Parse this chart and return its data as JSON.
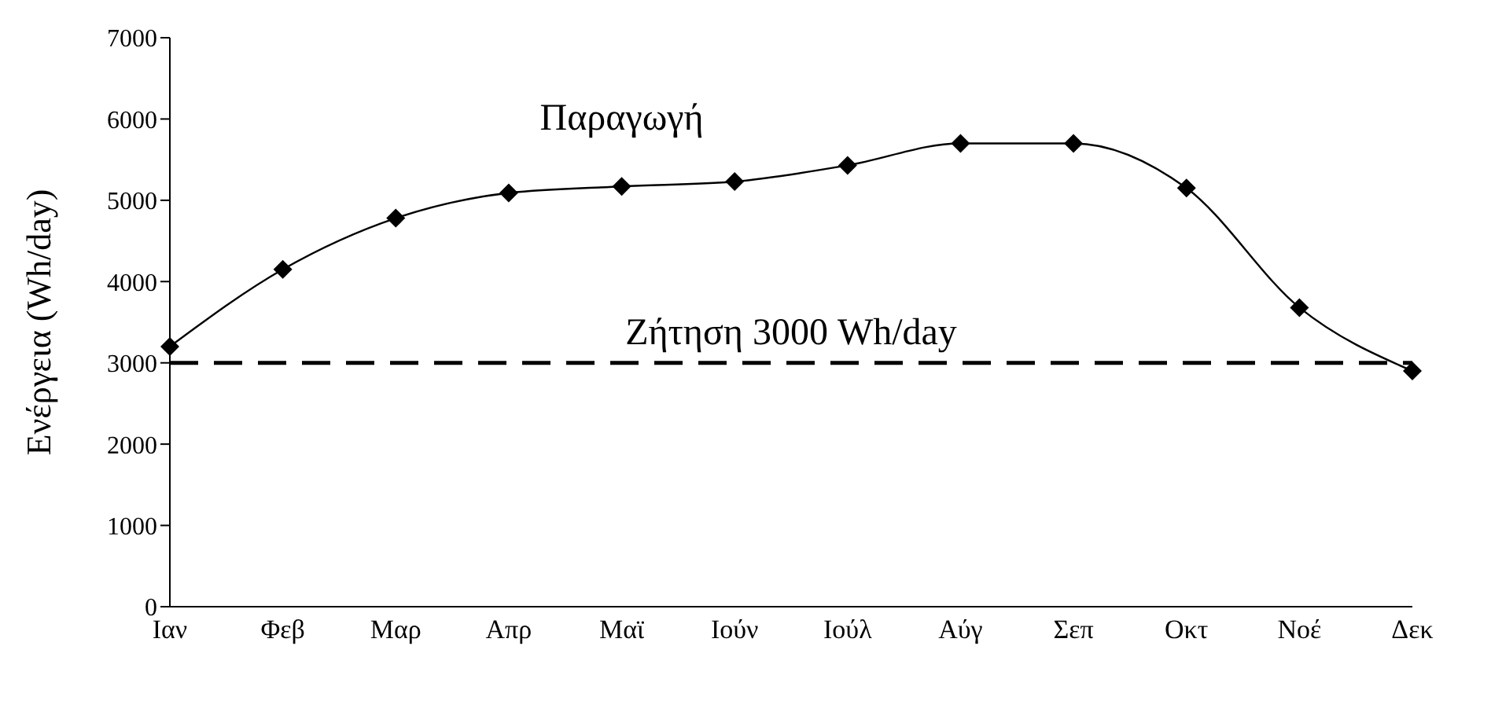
{
  "chart_data": {
    "type": "line",
    "ylabel": "Ενέργεια (Wh/day)",
    "categories": [
      "Ιαν",
      "Φεβ",
      "Μαρ",
      "Απρ",
      "Μαϊ",
      "Ιούν",
      "Ιούλ",
      "Αύγ",
      "Σεπ",
      "Οκτ",
      "Νοέ",
      "Δεκ"
    ],
    "series": [
      {
        "name": "Παραγωγή",
        "color": "#000000",
        "values": [
          3200,
          4150,
          4780,
          5090,
          5170,
          5230,
          5430,
          5700,
          5700,
          5150,
          3680,
          2900
        ]
      }
    ],
    "ylim": [
      0,
      7000
    ],
    "yticks": [
      0,
      1000,
      2000,
      3000,
      4000,
      5000,
      6000,
      7000
    ],
    "ref_lines": [
      {
        "axis": "y",
        "value": 3000,
        "label": "Ζήτηση 3000 Wh/day",
        "color": "#000000",
        "line_style": "dashed"
      }
    ],
    "marker": "diamond",
    "line_style": "solid",
    "grid": false,
    "legend": false
  }
}
